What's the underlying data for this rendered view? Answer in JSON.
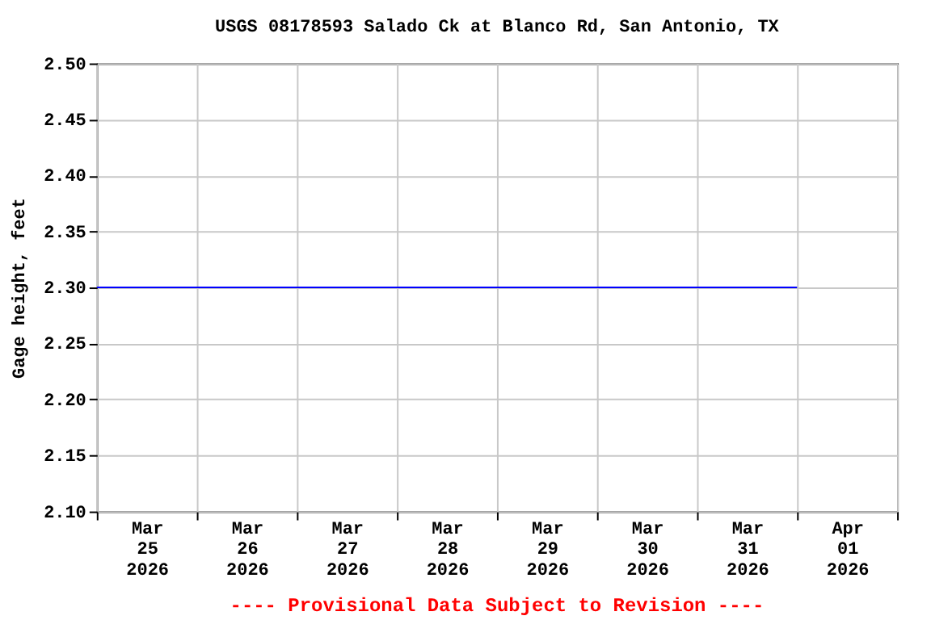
{
  "chart_data": {
    "type": "line",
    "title": "USGS 08178593 Salado Ck at Blanco Rd, San Antonio, TX",
    "ylabel": "Gage height, feet",
    "series": [
      {
        "color": "#0000ff",
        "x": [
          "2026-03-25T00:00",
          "2026-04-01T00:00"
        ],
        "values": [
          2.3,
          2.3
        ]
      }
    ],
    "xlim": [
      "2026-03-25T00:00",
      "2026-04-02T00:00"
    ],
    "xticks": [
      {
        "value": "2026-03-25T00:00",
        "label": null
      },
      {
        "value": "2026-03-25T12:00",
        "label": "Mar\n25\n2026"
      },
      {
        "value": "2026-03-26T00:00",
        "label": null
      },
      {
        "value": "2026-03-26T12:00",
        "label": "Mar\n26\n2026"
      },
      {
        "value": "2026-03-27T00:00",
        "label": null
      },
      {
        "value": "2026-03-27T12:00",
        "label": "Mar\n27\n2026"
      },
      {
        "value": "2026-03-28T00:00",
        "label": null
      },
      {
        "value": "2026-03-28T12:00",
        "label": "Mar\n28\n2026"
      },
      {
        "value": "2026-03-29T00:00",
        "label": null
      },
      {
        "value": "2026-03-29T12:00",
        "label": "Mar\n29\n2026"
      },
      {
        "value": "2026-03-30T00:00",
        "label": null
      },
      {
        "value": "2026-03-30T12:00",
        "label": "Mar\n30\n2026"
      },
      {
        "value": "2026-03-31T00:00",
        "label": null
      },
      {
        "value": "2026-03-31T12:00",
        "label": "Mar\n31\n2026"
      },
      {
        "value": "2026-04-01T00:00",
        "label": null
      },
      {
        "value": "2026-04-01T12:00",
        "label": "Apr\n01\n2026"
      },
      {
        "value": "2026-04-02T00:00",
        "label": null
      }
    ],
    "ylim": [
      2.1,
      2.5
    ],
    "yticks": [
      {
        "value": 2.1,
        "label": "2.10"
      },
      {
        "value": 2.15,
        "label": "2.15"
      },
      {
        "value": 2.2,
        "label": "2.20"
      },
      {
        "value": 2.25,
        "label": "2.25"
      },
      {
        "value": 2.3,
        "label": "2.30"
      },
      {
        "value": 2.35,
        "label": "2.35"
      },
      {
        "value": 2.4,
        "label": "2.40"
      },
      {
        "value": 2.45,
        "label": "2.45"
      },
      {
        "value": 2.5,
        "label": "2.50"
      }
    ],
    "grid": true,
    "line_style": "solid",
    "marker": "none",
    "annotations": [
      "---- Provisional Data Subject to Revision ----"
    ]
  }
}
